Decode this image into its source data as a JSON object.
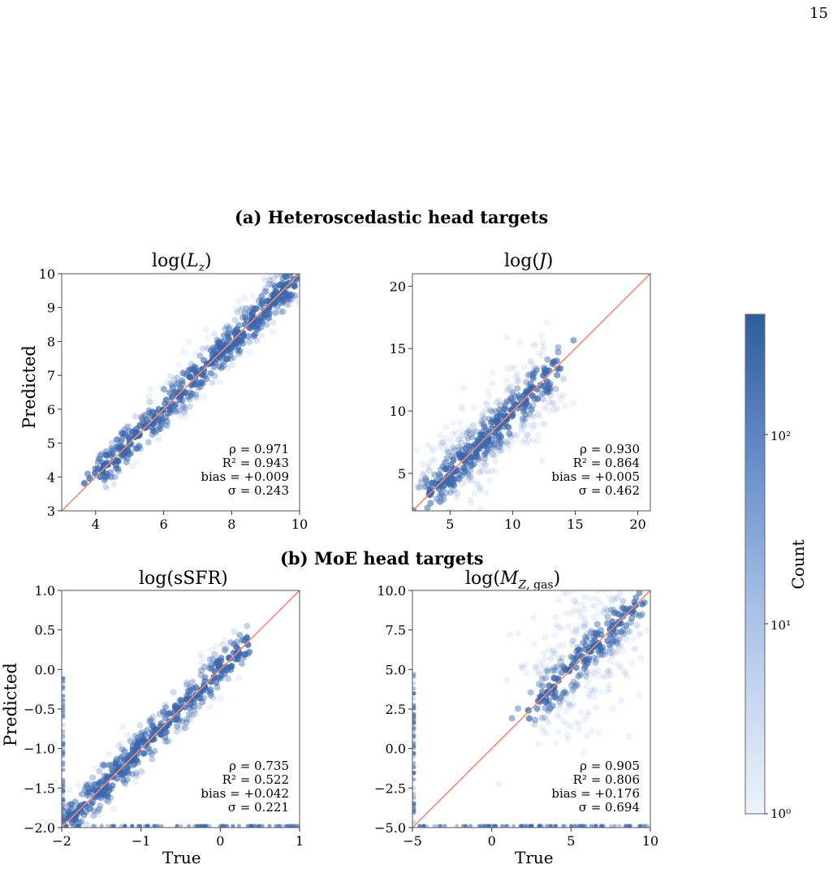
{
  "page_number": "15",
  "section_a": "(a) Heteroscedastic head targets",
  "section_b": "(b) MoE head targets",
  "colorbar": {
    "label": "Count",
    "ticks": [
      "10⁰",
      "10¹",
      "10²"
    ],
    "scale": "log",
    "range": [
      1,
      400
    ],
    "color_low": "#e9f0fa",
    "color_high": "#2f5d9b"
  },
  "colors": {
    "identity_line": "#f08a76",
    "hex_base": "#3a67ad"
  },
  "chart_data": [
    {
      "type": "hexbin-scatter",
      "title": "log(L_z)",
      "xlabel": "",
      "ylabel": "Predicted",
      "xlim": [
        3,
        10
      ],
      "ylim": [
        3,
        10
      ],
      "xticks": [
        "4",
        "6",
        "8",
        "10"
      ],
      "yticks": [
        "3",
        "4",
        "5",
        "6",
        "7",
        "8",
        "9",
        "10"
      ],
      "identity_line": true,
      "stats": [
        "ρ = 0.971",
        "R² = 0.943",
        "bias = +0.009",
        "σ = 0.243"
      ],
      "distribution": {
        "x_range": [
          4,
          9.9
        ],
        "spread": 0.25,
        "density": "high"
      }
    },
    {
      "type": "hexbin-scatter",
      "title": "log(J)",
      "xlabel": "",
      "ylabel": "",
      "xlim": [
        2,
        21
      ],
      "ylim": [
        2,
        21
      ],
      "xticks": [
        "5",
        "10",
        "15",
        "20"
      ],
      "yticks": [
        "5",
        "10",
        "15",
        "20"
      ],
      "identity_line": true,
      "stats": [
        "ρ = 0.930",
        "R² = 0.864",
        "bias = +0.005",
        "σ = 0.462"
      ],
      "distribution": {
        "x_range": [
          3.5,
          13
        ],
        "spread": 0.5,
        "density": "high"
      }
    },
    {
      "type": "hexbin-scatter",
      "title": "log(sSFR)",
      "xlabel": "True",
      "ylabel": "Predicted",
      "xlim": [
        -2,
        1
      ],
      "ylim": [
        -2,
        1
      ],
      "xticks": [
        "−2",
        "−1",
        "0",
        "1"
      ],
      "yticks": [
        "−2.0",
        "−1.5",
        "−1.0",
        "−0.5",
        "0.0",
        "0.5",
        "1.0"
      ],
      "identity_line": true,
      "stats": [
        "ρ = 0.735",
        "R² = 0.522",
        "bias = +0.042",
        "σ = 0.221"
      ],
      "distribution": {
        "x_range": [
          -2,
          0.3
        ],
        "spread": 0.25,
        "density": "medium"
      }
    },
    {
      "type": "hexbin-scatter",
      "title": "log(M_Z,gas)",
      "xlabel": "True",
      "ylabel": "",
      "xlim": [
        -5,
        10
      ],
      "ylim": [
        -5,
        10
      ],
      "xticks": [
        "−5",
        "0",
        "5",
        "10"
      ],
      "yticks": [
        "−5.0",
        "−2.5",
        "0.0",
        "2.5",
        "5.0",
        "7.5",
        "10.0"
      ],
      "identity_line": true,
      "stats": [
        "ρ = 0.905",
        "R² = 0.806",
        "bias = +0.176",
        "σ = 0.694"
      ],
      "distribution": {
        "x_range": [
          3,
          9
        ],
        "spread": 0.7,
        "density": "medium"
      }
    }
  ]
}
